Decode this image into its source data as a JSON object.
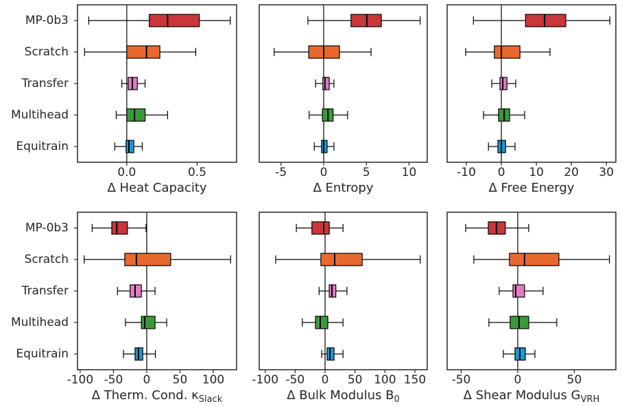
{
  "chart_data": [
    {
      "type": "box",
      "orientation": "horizontal",
      "xlabel": "Δ Heat Capacity",
      "categories": [
        "MP-0b3",
        "Scratch",
        "Transfer",
        "Multihead",
        "Equitrain"
      ],
      "colors": [
        "#c9373b",
        "#e8692e",
        "#e07cc3",
        "#3a9a3a",
        "#2196d3"
      ],
      "xlim": [
        -0.35,
        0.78
      ],
      "xticks": [
        {
          "value": 0,
          "label": "0.0"
        },
        {
          "value": 0.5,
          "label": "0.5"
        }
      ],
      "zeroline": 0,
      "boxes": [
        {
          "whislo": -0.27,
          "q1": 0.16,
          "med": 0.29,
          "q3": 0.515,
          "whishi": 0.735
        },
        {
          "whislo": -0.3,
          "q1": 0.0,
          "med": 0.14,
          "q3": 0.235,
          "whishi": 0.49
        },
        {
          "whislo": -0.035,
          "q1": 0.01,
          "med": 0.04,
          "q3": 0.075,
          "whishi": 0.13
        },
        {
          "whislo": -0.075,
          "q1": 0.0,
          "med": 0.055,
          "q3": 0.13,
          "whishi": 0.29
        },
        {
          "whislo": -0.085,
          "q1": -0.005,
          "med": 0.015,
          "q3": 0.05,
          "whishi": 0.11
        }
      ]
    },
    {
      "type": "box",
      "orientation": "horizontal",
      "xlabel": "Δ Entropy",
      "colors": [
        "#c9373b",
        "#e8692e",
        "#e07cc3",
        "#3a9a3a",
        "#2196d3"
      ],
      "xlim": [
        -7.55,
        12.13
      ],
      "xticks": [
        -5,
        0,
        5,
        10
      ],
      "zeroline": 0,
      "boxes": [
        {
          "whislo": -1.85,
          "q1": 3.2,
          "med": 5.05,
          "q3": 6.75,
          "whishi": 11.3
        },
        {
          "whislo": -5.8,
          "q1": -1.75,
          "med": 0,
          "q3": 1.85,
          "whishi": 5.55
        },
        {
          "whislo": -0.95,
          "q1": -0.1,
          "med": 0.15,
          "q3": 0.65,
          "whishi": 1.2
        },
        {
          "whislo": -1.7,
          "q1": -0.15,
          "med": 0.5,
          "q3": 1.1,
          "whishi": 2.8
        },
        {
          "whislo": -1.1,
          "q1": -0.25,
          "med": 0,
          "q3": 0.4,
          "whishi": 1.2
        }
      ]
    },
    {
      "type": "box",
      "orientation": "horizontal",
      "xlabel": "Δ Free Energy",
      "colors": [
        "#c9373b",
        "#e8692e",
        "#e07cc3",
        "#3a9a3a",
        "#2196d3"
      ],
      "xlim": [
        -15.5,
        32.7
      ],
      "xticks": [
        -10,
        0,
        10,
        20,
        30
      ],
      "zeroline": 0,
      "boxes": [
        {
          "whislo": -8,
          "q1": 6.9,
          "med": 12.35,
          "q3": 18.4,
          "whishi": 31
        },
        {
          "whislo": -10.2,
          "q1": -2,
          "med": 0,
          "q3": 5.3,
          "whishi": 13.9
        },
        {
          "whislo": -2.75,
          "q1": -0.4,
          "med": 0.4,
          "q3": 1.6,
          "whishi": 4.1
        },
        {
          "whislo": -5.1,
          "q1": -0.8,
          "med": 0.8,
          "q3": 2.35,
          "whishi": 6.65
        },
        {
          "whislo": -3.7,
          "q1": -1,
          "med": 0,
          "q3": 1.2,
          "whishi": 3.9
        }
      ]
    },
    {
      "type": "box",
      "orientation": "horizontal",
      "xlabel": "Δ Therm. Cond. κ",
      "xlabel_sub": "Slack",
      "categories": [
        "MP-0b3",
        "Scratch",
        "Transfer",
        "Multihead",
        "Equitrain"
      ],
      "colors": [
        "#c9373b",
        "#e8692e",
        "#e07cc3",
        "#3a9a3a",
        "#2196d3"
      ],
      "xlim": [
        -104,
        135
      ],
      "xticks": [
        -100,
        -50,
        0,
        50,
        100
      ],
      "zeroline": 0,
      "boxes": [
        {
          "whislo": -82,
          "q1": -52.5,
          "med": -45,
          "q3": -29,
          "whishi": -1
        },
        {
          "whislo": -94,
          "q1": -33,
          "med": -15.5,
          "q3": 36,
          "whishi": 126
        },
        {
          "whislo": -44,
          "q1": -25,
          "med": -17.5,
          "q3": -8,
          "whishi": 12.5
        },
        {
          "whislo": -32,
          "q1": -8,
          "med": -3,
          "q3": 12.5,
          "whishi": 30
        },
        {
          "whislo": -35,
          "q1": -17.5,
          "med": -12.5,
          "q3": -6,
          "whishi": 13
        }
      ]
    },
    {
      "type": "box",
      "orientation": "horizontal",
      "xlabel": "Δ Bulk Modulus B",
      "xlabel_sub": "0",
      "colors": [
        "#c9373b",
        "#e8692e",
        "#e07cc3",
        "#3a9a3a",
        "#2196d3"
      ],
      "xlim": [
        -110,
        170.7
      ],
      "xticks": [
        -100,
        -50,
        0,
        50,
        100,
        150
      ],
      "zeroline": 0,
      "boxes": [
        {
          "whislo": -48,
          "q1": -22,
          "med": -2.3,
          "q3": 7,
          "whishi": 30
        },
        {
          "whislo": -82.5,
          "q1": -7,
          "med": 16,
          "q3": 62,
          "whishi": 159
        },
        {
          "whislo": -10,
          "q1": 7,
          "med": 11.5,
          "q3": 18,
          "whishi": 36.6
        },
        {
          "whislo": -38,
          "q1": -16,
          "med": -8,
          "q3": 4.6,
          "whishi": 30
        },
        {
          "whislo": -5.7,
          "q1": 3.4,
          "med": 8,
          "q3": 15,
          "whishi": 30
        }
      ]
    },
    {
      "type": "box",
      "orientation": "horizontal",
      "xlabel": "Δ Shear Modulus G",
      "xlabel_sub": "VRH",
      "colors": [
        "#c9373b",
        "#e8692e",
        "#e07cc3",
        "#3a9a3a",
        "#2196d3"
      ],
      "xlim": [
        -62.4,
        86.7
      ],
      "xticks": [
        -50,
        0,
        50
      ],
      "zeroline": 0,
      "boxes": [
        {
          "whislo": -46,
          "q1": -26,
          "med": -18.8,
          "q3": -11,
          "whishi": 9.7
        },
        {
          "whislo": -38.8,
          "q1": -7.3,
          "med": 6,
          "q3": 36.4,
          "whishi": 81
        },
        {
          "whislo": -16.4,
          "q1": -4.2,
          "med": -1.8,
          "q3": 6,
          "whishi": 22.4
        },
        {
          "whislo": -25.5,
          "q1": -6.7,
          "med": 1.2,
          "q3": 9.7,
          "whishi": 34.5
        },
        {
          "whislo": -12.7,
          "q1": -2.4,
          "med": 1.8,
          "q3": 6.7,
          "whishi": 15.2
        }
      ]
    }
  ]
}
